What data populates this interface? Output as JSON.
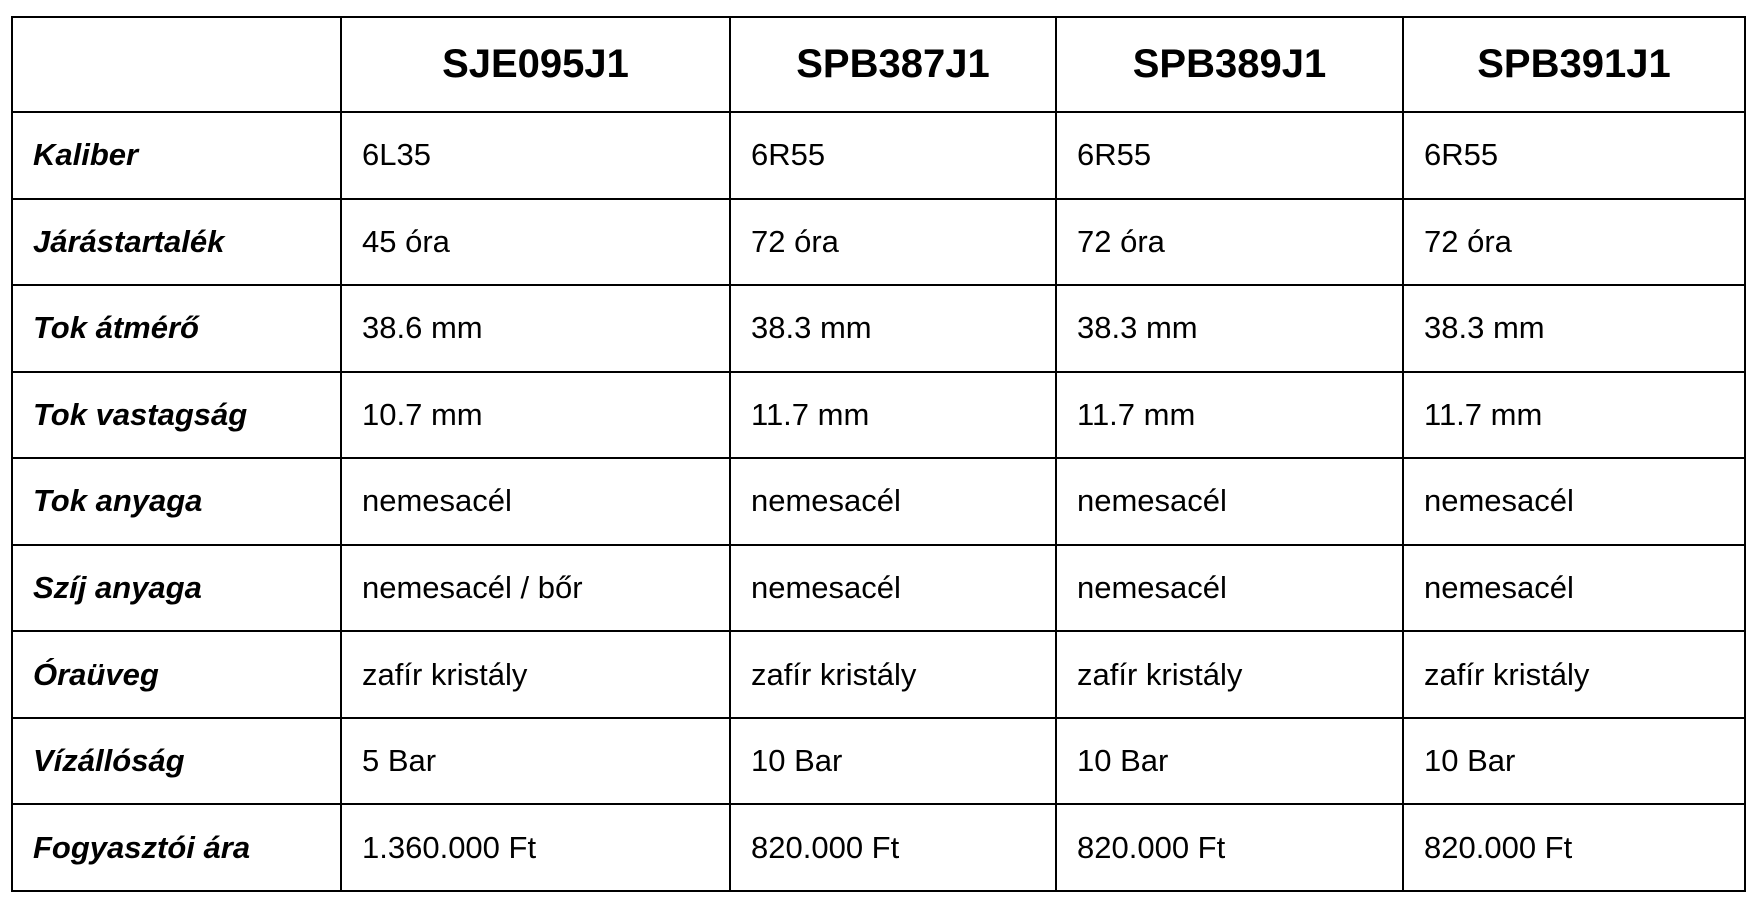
{
  "header": [
    "",
    "SJE095J1",
    "SPB387J1",
    "SPB389J1",
    "SPB391J1"
  ],
  "rows": [
    {
      "label": "Kaliber",
      "values": [
        "6L35",
        "6R55",
        "6R55",
        "6R55"
      ]
    },
    {
      "label": "Járástartalék",
      "values": [
        "45 óra",
        "72 óra",
        "72 óra",
        "72 óra"
      ]
    },
    {
      "label": "Tok átmérő",
      "values": [
        "38.6 mm",
        "38.3 mm",
        "38.3 mm",
        "38.3 mm"
      ]
    },
    {
      "label": "Tok vastagság",
      "values": [
        "10.7 mm",
        "11.7 mm",
        "11.7 mm",
        "11.7 mm"
      ]
    },
    {
      "label": "Tok anyaga",
      "values": [
        "nemesacél",
        "nemesacél",
        "nemesacél",
        "nemesacél"
      ]
    },
    {
      "label": "Szíj anyaga",
      "values": [
        "nemesacél / bőr",
        "nemesacél",
        "nemesacél",
        "nemesacél"
      ]
    },
    {
      "label": "Óraüveg",
      "values": [
        "zafír kristály",
        "zafír kristály",
        "zafír kristály",
        "zafír kristály"
      ]
    },
    {
      "label": "Vízállóság",
      "values": [
        "5 Bar",
        "10 Bar",
        "10 Bar",
        "10 Bar"
      ]
    },
    {
      "label": "Fogyasztói ára",
      "values": [
        "1.360.000 Ft",
        "820.000 Ft",
        "820.000 Ft",
        "820.000 Ft"
      ]
    }
  ]
}
